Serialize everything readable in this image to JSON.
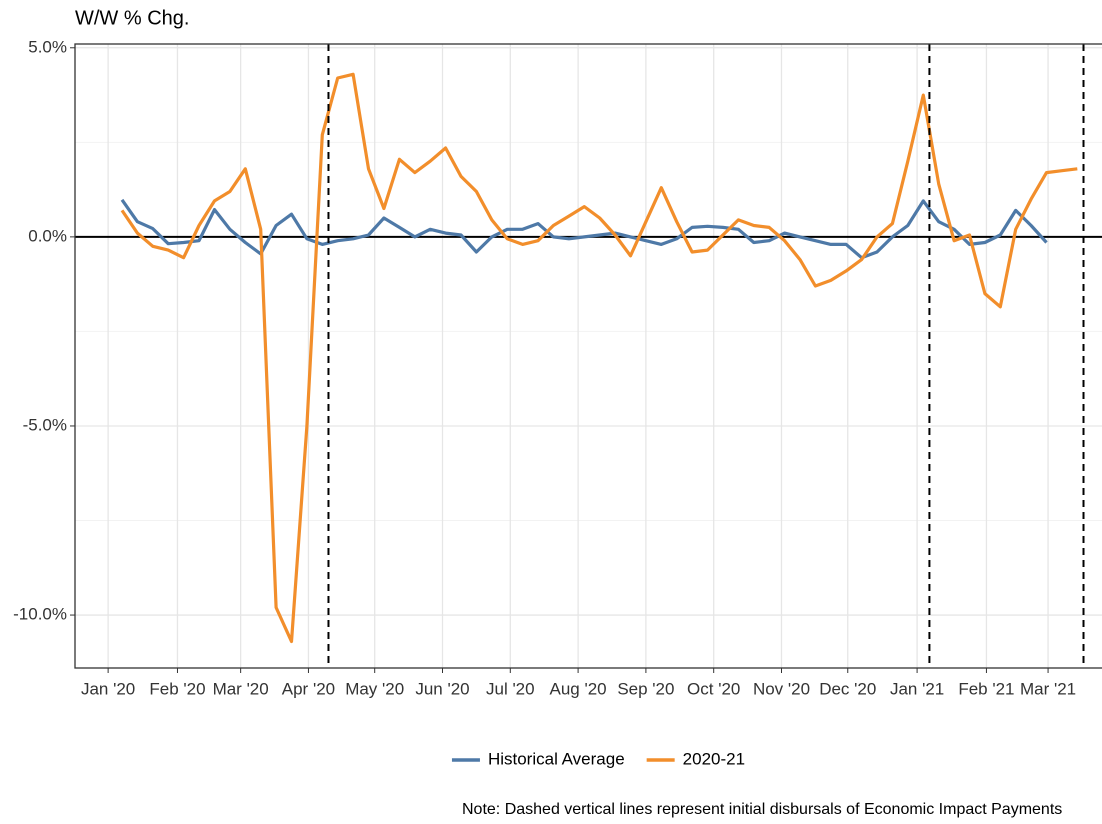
{
  "chart_data": {
    "type": "line",
    "title": "W/W % Chg.",
    "note": "Note: Dashed vertical lines represent initial disbursals of Economic Impact Payments",
    "x": [
      1,
      2,
      3,
      4,
      5,
      6,
      7,
      8,
      9,
      10,
      11,
      12,
      13,
      14,
      15,
      16,
      17,
      18,
      19,
      20,
      21,
      22,
      23,
      24,
      25,
      26,
      27,
      28,
      29,
      30,
      31,
      32,
      33,
      34,
      35,
      36,
      37,
      38,
      39,
      40,
      41,
      42,
      43,
      44,
      45,
      46,
      47,
      48,
      49,
      50,
      51,
      52,
      53,
      54,
      55,
      56,
      57,
      58,
      59,
      60,
      61,
      62,
      63
    ],
    "series": [
      {
        "name": "Historical Average",
        "color": "#4e79a7",
        "values": [
          0.98,
          0.4,
          0.22,
          -0.18,
          -0.15,
          -0.1,
          0.72,
          0.2,
          -0.15,
          -0.45,
          0.3,
          0.6,
          -0.05,
          -0.2,
          -0.1,
          -0.05,
          0.05,
          0.5,
          0.25,
          0.0,
          0.2,
          0.1,
          0.05,
          -0.4,
          0.0,
          0.2,
          0.2,
          0.35,
          0.0,
          -0.05,
          0.0,
          0.05,
          0.1,
          0.0,
          -0.1,
          -0.2,
          -0.05,
          0.25,
          0.28,
          0.25,
          0.2,
          -0.15,
          -0.1,
          0.1,
          0.0,
          -0.1,
          -0.2,
          -0.2,
          -0.55,
          -0.4,
          0.0,
          0.3,
          0.95,
          0.4,
          0.2,
          -0.2,
          -0.15,
          0.05,
          0.7,
          0.3,
          -0.15,
          null,
          null
        ]
      },
      {
        "name": "2020-21",
        "color": "#f28e2b",
        "values": [
          0.7,
          0.1,
          -0.25,
          -0.35,
          -0.55,
          0.3,
          0.95,
          1.2,
          1.8,
          0.2,
          -9.8,
          -10.7,
          -5.0,
          2.7,
          4.2,
          4.3,
          1.8,
          0.75,
          2.05,
          1.7,
          2.0,
          2.35,
          1.6,
          1.2,
          0.45,
          -0.05,
          -0.2,
          -0.1,
          0.3,
          0.55,
          0.8,
          0.5,
          0.05,
          -0.5,
          0.4,
          1.3,
          0.4,
          -0.4,
          -0.35,
          0.05,
          0.45,
          0.3,
          0.25,
          -0.1,
          -0.6,
          -1.3,
          -1.15,
          -0.9,
          -0.6,
          0.0,
          0.35,
          2.0,
          3.75,
          1.4,
          -0.1,
          0.05,
          -1.5,
          -1.85,
          0.2,
          1.0,
          1.7,
          1.75,
          1.8
        ]
      }
    ],
    "xlim": [
      -2.05,
      64.6
    ],
    "xticks": [
      {
        "value": 0.1,
        "label": "Jan '20"
      },
      {
        "value": 4.6,
        "label": "Feb '20"
      },
      {
        "value": 8.7,
        "label": "Mar '20"
      },
      {
        "value": 13.1,
        "label": "Apr '20"
      },
      {
        "value": 17.4,
        "label": "May '20"
      },
      {
        "value": 21.8,
        "label": "Jun '20"
      },
      {
        "value": 26.2,
        "label": "Jul '20"
      },
      {
        "value": 30.6,
        "label": "Aug '20"
      },
      {
        "value": 35.0,
        "label": "Sep '20"
      },
      {
        "value": 39.4,
        "label": "Oct '20"
      },
      {
        "value": 43.8,
        "label": "Nov '20"
      },
      {
        "value": 48.1,
        "label": "Dec '20"
      },
      {
        "value": 52.6,
        "label": "Jan '21"
      },
      {
        "value": 57.1,
        "label": "Feb '21"
      },
      {
        "value": 61.1,
        "label": "Mar '21"
      }
    ],
    "ylim": [
      -11.4,
      5.1
    ],
    "yticks": [
      {
        "value": -10,
        "label": "-10.0%"
      },
      {
        "value": -5,
        "label": "-5.0%"
      },
      {
        "value": 0,
        "label": "0.0%"
      },
      {
        "value": 5,
        "label": "5.0%"
      }
    ],
    "y_minor_grid": [
      -7.5,
      -2.5,
      2.5
    ],
    "hline": 0,
    "vlines": [
      14.4,
      53.4,
      63.4
    ],
    "grid": true,
    "legend": "bottom"
  }
}
